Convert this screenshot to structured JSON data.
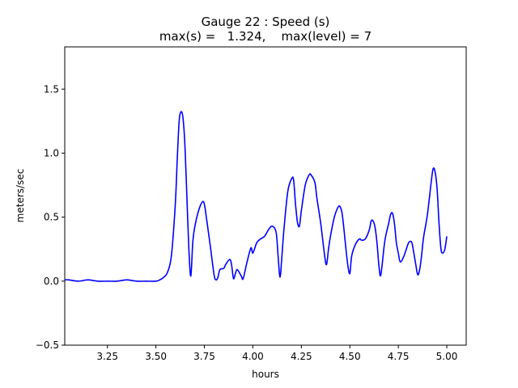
{
  "chart_data": {
    "type": "line",
    "title_line1": "Gauge 22 : Speed (s)",
    "title_line2": "max(s) =   1.324,    max(level) = 7",
    "xlabel": "hours",
    "ylabel": "meters/sec",
    "xlim": [
      3.03,
      5.1
    ],
    "ylim": [
      -0.5,
      1.83
    ],
    "x_ticks": [
      3.25,
      3.5,
      3.75,
      4.0,
      4.25,
      4.5,
      4.75,
      5.0
    ],
    "x_tick_labels": [
      "3.25",
      "3.50",
      "3.75",
      "4.00",
      "4.25",
      "4.50",
      "4.75",
      "5.00"
    ],
    "y_ticks": [
      -0.5,
      0.0,
      0.5,
      1.0,
      1.5
    ],
    "y_tick_labels": [
      "−0.5",
      "0.0",
      "0.5",
      "1.0",
      "1.5"
    ],
    "grid": false,
    "series": [
      {
        "color": "#0000ff",
        "x": [
          3.03,
          3.05,
          3.1,
          3.15,
          3.2,
          3.25,
          3.3,
          3.35,
          3.4,
          3.45,
          3.5,
          3.52,
          3.54,
          3.56,
          3.58,
          3.6,
          3.61,
          3.62,
          3.63,
          3.64,
          3.65,
          3.66,
          3.67,
          3.68,
          3.69,
          3.7,
          3.72,
          3.74,
          3.75,
          3.76,
          3.78,
          3.8,
          3.81,
          3.82,
          3.83,
          3.85,
          3.86,
          3.88,
          3.89,
          3.9,
          3.91,
          3.92,
          3.94,
          3.95,
          3.97,
          3.99,
          4.0,
          4.02,
          4.04,
          4.06,
          4.08,
          4.1,
          4.12,
          4.13,
          4.14,
          4.15,
          4.16,
          4.18,
          4.2,
          4.21,
          4.22,
          4.23,
          4.24,
          4.25,
          4.27,
          4.29,
          4.3,
          4.32,
          4.33,
          4.35,
          4.37,
          4.38,
          4.39,
          4.4,
          4.42,
          4.44,
          4.45,
          4.46,
          4.47,
          4.48,
          4.49,
          4.5,
          4.51,
          4.53,
          4.55,
          4.56,
          4.58,
          4.6,
          4.61,
          4.62,
          4.63,
          4.64,
          4.65,
          4.66,
          4.68,
          4.7,
          4.71,
          4.72,
          4.73,
          4.74,
          4.75,
          4.76,
          4.78,
          4.8,
          4.81,
          4.82,
          4.83,
          4.84,
          4.85,
          4.86,
          4.87,
          4.88,
          4.9,
          4.92,
          4.93,
          4.94,
          4.95,
          4.96,
          4.97,
          4.98,
          4.99,
          5.0
        ],
        "y": [
          0.01,
          0.01,
          0.0,
          0.01,
          0.0,
          0.0,
          0.0,
          0.01,
          0.0,
          0.0,
          0.0,
          0.01,
          0.03,
          0.07,
          0.2,
          0.6,
          0.95,
          1.25,
          1.324,
          1.27,
          1.05,
          0.65,
          0.25,
          0.04,
          0.3,
          0.42,
          0.55,
          0.62,
          0.6,
          0.5,
          0.28,
          0.05,
          0.01,
          0.03,
          0.09,
          0.1,
          0.13,
          0.17,
          0.13,
          0.02,
          0.06,
          0.09,
          0.04,
          0.02,
          0.15,
          0.26,
          0.22,
          0.3,
          0.33,
          0.35,
          0.4,
          0.43,
          0.38,
          0.2,
          0.03,
          0.2,
          0.4,
          0.7,
          0.8,
          0.79,
          0.6,
          0.46,
          0.43,
          0.55,
          0.75,
          0.83,
          0.83,
          0.77,
          0.65,
          0.45,
          0.2,
          0.13,
          0.25,
          0.35,
          0.5,
          0.58,
          0.58,
          0.53,
          0.4,
          0.25,
          0.12,
          0.06,
          0.2,
          0.29,
          0.33,
          0.32,
          0.33,
          0.4,
          0.47,
          0.47,
          0.42,
          0.3,
          0.12,
          0.05,
          0.31,
          0.45,
          0.52,
          0.53,
          0.45,
          0.3,
          0.22,
          0.15,
          0.2,
          0.29,
          0.31,
          0.3,
          0.22,
          0.13,
          0.05,
          0.09,
          0.2,
          0.34,
          0.52,
          0.78,
          0.88,
          0.85,
          0.72,
          0.45,
          0.25,
          0.22,
          0.25,
          0.35
        ]
      }
    ]
  }
}
